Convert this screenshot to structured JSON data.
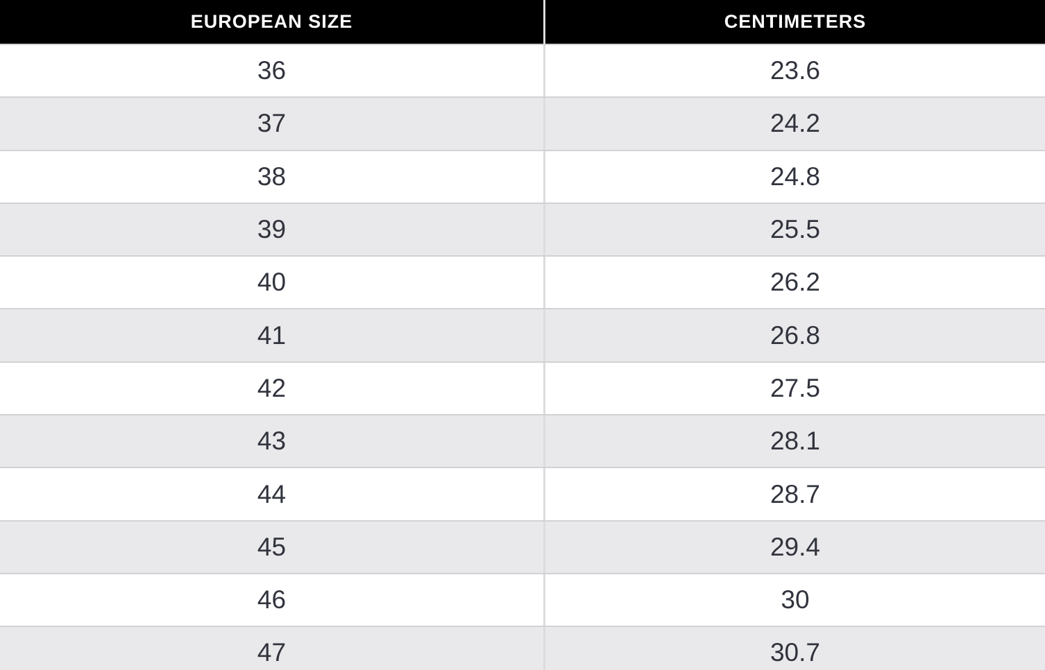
{
  "table": {
    "columns": [
      {
        "label": "EUROPEAN SIZE"
      },
      {
        "label": "CENTIMETERS"
      }
    ],
    "rows": [
      {
        "size": "36",
        "cm": "23.6"
      },
      {
        "size": "37",
        "cm": "24.2"
      },
      {
        "size": "38",
        "cm": "24.8"
      },
      {
        "size": "39",
        "cm": "25.5"
      },
      {
        "size": "40",
        "cm": "26.2"
      },
      {
        "size": "41",
        "cm": "26.8"
      },
      {
        "size": "42",
        "cm": "27.5"
      },
      {
        "size": "43",
        "cm": "28.1"
      },
      {
        "size": "44",
        "cm": "28.7"
      },
      {
        "size": "45",
        "cm": "29.4"
      },
      {
        "size": "46",
        "cm": "30"
      },
      {
        "size": "47",
        "cm": "30.7"
      }
    ]
  },
  "colors": {
    "header_bg": "#000000",
    "header_text": "#ffffff",
    "row_bg": "#ffffff",
    "row_alt_bg": "#e9e8ea",
    "border": "#d2d2d4",
    "divider": "#dcdcde",
    "text": "#31343d"
  },
  "chart_data": {
    "type": "table",
    "title": "",
    "columns": [
      "EUROPEAN SIZE",
      "CENTIMETERS"
    ],
    "rows": [
      [
        36,
        23.6
      ],
      [
        37,
        24.2
      ],
      [
        38,
        24.8
      ],
      [
        39,
        25.5
      ],
      [
        40,
        26.2
      ],
      [
        41,
        26.8
      ],
      [
        42,
        27.5
      ],
      [
        43,
        28.1
      ],
      [
        44,
        28.7
      ],
      [
        45,
        29.4
      ],
      [
        46,
        30
      ],
      [
        47,
        30.7
      ]
    ],
    "layout": {
      "header_style": "black-bar-white-text",
      "row_striping": "white-then-light-gray",
      "last_row_clipped": true
    }
  }
}
